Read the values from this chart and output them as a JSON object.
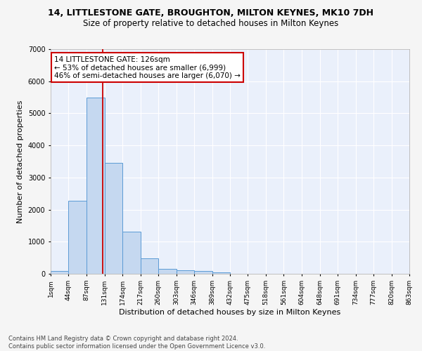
{
  "title": "14, LITTLESTONE GATE, BROUGHTON, MILTON KEYNES, MK10 7DH",
  "subtitle": "Size of property relative to detached houses in Milton Keynes",
  "xlabel": "Distribution of detached houses by size in Milton Keynes",
  "ylabel": "Number of detached properties",
  "bar_color": "#c5d8f0",
  "bar_edge_color": "#5b9bd5",
  "background_color": "#eaf0fb",
  "grid_color": "#ffffff",
  "annotation_text": "14 LITTLESTONE GATE: 126sqm\n← 53% of detached houses are smaller (6,999)\n46% of semi-detached houses are larger (6,070) →",
  "annotation_box_color": "#ffffff",
  "annotation_box_edge_color": "#cc0000",
  "vline_x": 126,
  "vline_color": "#cc0000",
  "bin_edges": [
    1,
    44,
    87,
    131,
    174,
    217,
    260,
    303,
    346,
    389,
    432,
    475,
    518,
    561,
    604,
    648,
    691,
    734,
    777,
    820,
    863
  ],
  "bar_heights": [
    80,
    2270,
    5480,
    3450,
    1310,
    480,
    155,
    110,
    80,
    45,
    0,
    0,
    0,
    0,
    0,
    0,
    0,
    0,
    0,
    0
  ],
  "ylim": [
    0,
    7000
  ],
  "xlim": [
    1,
    863
  ],
  "tick_labels": [
    "1sqm",
    "44sqm",
    "87sqm",
    "131sqm",
    "174sqm",
    "217sqm",
    "260sqm",
    "303sqm",
    "346sqm",
    "389sqm",
    "432sqm",
    "475sqm",
    "518sqm",
    "561sqm",
    "604sqm",
    "648sqm",
    "691sqm",
    "734sqm",
    "777sqm",
    "820sqm",
    "863sqm"
  ],
  "footer_text": "Contains HM Land Registry data © Crown copyright and database right 2024.\nContains public sector information licensed under the Open Government Licence v3.0.",
  "title_fontsize": 9,
  "subtitle_fontsize": 8.5,
  "xlabel_fontsize": 8,
  "ylabel_fontsize": 8,
  "tick_fontsize": 6.5,
  "annotation_fontsize": 7.5,
  "footer_fontsize": 6
}
